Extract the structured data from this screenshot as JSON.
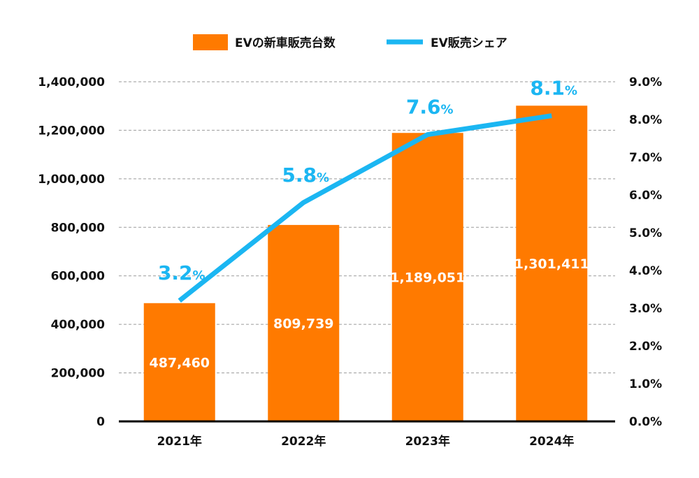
{
  "chart_data": {
    "type": "bar+line",
    "categories": [
      "2021年",
      "2022年",
      "2023年",
      "2024年"
    ],
    "series": [
      {
        "name": "EVの新車販売台数",
        "type": "bar",
        "axis": "left",
        "color": "#FF7A00",
        "values": [
          487460,
          809739,
          1189051,
          1301411
        ],
        "labels": [
          "487,460",
          "809,739",
          "1,189,051",
          "1,301,411"
        ]
      },
      {
        "name": "EV販売シェア",
        "type": "line",
        "axis": "right",
        "color": "#1BB6F2",
        "values": [
          3.2,
          5.8,
          7.6,
          8.1
        ],
        "labels": [
          "3.2",
          "5.8",
          "7.6",
          "8.1"
        ],
        "label_unit": "%"
      }
    ],
    "left_axis": {
      "ylim": [
        0,
        1400000
      ],
      "ticks": [
        "0",
        "200,000",
        "400,000",
        "600,000",
        "800,000",
        "1,000,000",
        "1,200,000",
        "1,400,000"
      ]
    },
    "right_axis": {
      "ylim": [
        0,
        9
      ],
      "ticks": [
        "0.0%",
        "1.0%",
        "2.0%",
        "3.0%",
        "4.0%",
        "5.0%",
        "6.0%",
        "7.0%",
        "8.0%",
        "9.0%"
      ]
    },
    "grid": "horizontal dashed",
    "legend": "top-center"
  }
}
